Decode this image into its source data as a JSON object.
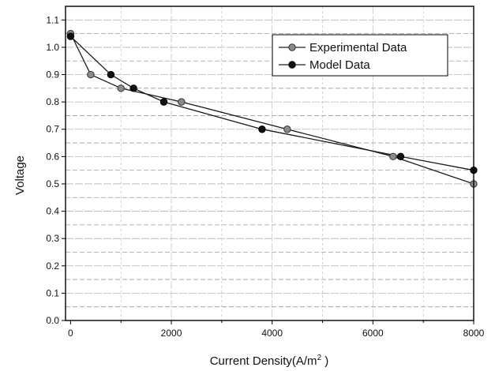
{
  "chart_data": {
    "type": "line",
    "title": "",
    "xlabel": "Current Density(A/m",
    "xlabel_superscript": "2",
    "xlabel_suffix": " )",
    "ylabel": "Voltage",
    "xlim": [
      -100,
      8000
    ],
    "ylim": [
      0.0,
      1.15
    ],
    "xticks": [
      0,
      2000,
      4000,
      6000,
      8000
    ],
    "xtick_labels": [
      "0",
      "2000",
      "4000",
      "6000",
      "8000"
    ],
    "yticks": [
      0.0,
      0.1,
      0.2,
      0.3,
      0.4,
      0.5,
      0.6,
      0.7,
      0.8,
      0.9,
      1.0,
      1.1
    ],
    "ytick_labels": [
      "0.0",
      "0.1",
      "0.2",
      "0.3",
      "0.4",
      "0.5",
      "0.6",
      "0.7",
      "0.8",
      "0.9",
      "1.0",
      "1.1"
    ],
    "grid": true,
    "legend_position": "top-right",
    "series": [
      {
        "name": "Experimental Data",
        "marker": "gray-circle",
        "x": [
          0,
          400,
          1000,
          2200,
          4300,
          6400,
          8000
        ],
        "y": [
          1.05,
          0.9,
          0.85,
          0.8,
          0.7,
          0.6,
          0.5
        ]
      },
      {
        "name": "Model Data",
        "marker": "black-circle",
        "x": [
          0,
          800,
          1250,
          1850,
          3800,
          6550,
          8000
        ],
        "y": [
          1.04,
          0.9,
          0.85,
          0.8,
          0.7,
          0.6,
          0.55
        ]
      }
    ]
  }
}
